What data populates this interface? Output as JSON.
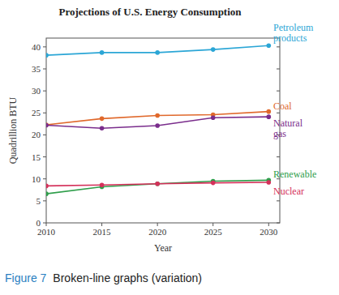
{
  "chart_data": {
    "type": "line",
    "title": "Projections of U.S. Energy Consumption",
    "x_label": "Year",
    "y_label": "Quadrillion BTU",
    "x": [
      2010,
      2015,
      2020,
      2025,
      2030
    ],
    "series": [
      {
        "name": "Petroleum products",
        "color": "#2ba6d6",
        "values": [
          38.1,
          38.7,
          38.7,
          39.4,
          40.3
        ]
      },
      {
        "name": "Coal",
        "color": "#e0692c",
        "values": [
          22.3,
          23.7,
          24.4,
          24.6,
          25.3
        ]
      },
      {
        "name": "Natural gas",
        "color": "#7a2d8c",
        "values": [
          22.2,
          21.5,
          22.1,
          23.9,
          24.1
        ]
      },
      {
        "name": "Renewable",
        "color": "#2f9e4b",
        "values": [
          6.6,
          8.2,
          8.9,
          9.5,
          9.7
        ]
      },
      {
        "name": "Nuclear",
        "color": "#d4305a",
        "values": [
          8.4,
          8.6,
          8.9,
          9.1,
          9.2
        ]
      }
    ],
    "xlim": [
      2010,
      2031
    ],
    "xticks": [
      2010,
      2015,
      2020,
      2025,
      2030
    ],
    "ylim": [
      0,
      42
    ],
    "yticks": [
      0,
      5,
      10,
      15,
      20,
      25,
      30,
      35,
      40
    ],
    "grid": false,
    "marker": "circle",
    "annotations": [
      "Figure 7",
      "Broken-line graphs (variation)"
    ]
  }
}
